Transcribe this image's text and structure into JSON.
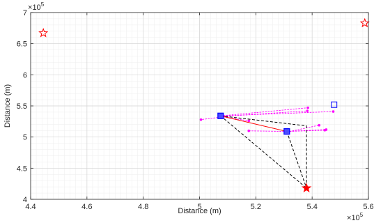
{
  "chart_data": {
    "type": "scatter",
    "title": "",
    "xlabel": "Distance (m)",
    "ylabel": "Distance (m)",
    "xlim": [
      4.4,
      5.6
    ],
    "ylim": [
      4.0,
      7.0
    ],
    "x_scale_base": "10",
    "x_scale_exponent": "5",
    "y_scale_base": "10",
    "y_scale_exponent": "5",
    "x_ticks": [
      "4.4",
      "4.6",
      "4.8",
      "5",
      "5.2",
      "5.4",
      "5.6"
    ],
    "y_ticks": [
      "4",
      "4.5",
      "5",
      "5.5",
      "6",
      "6.5",
      "7"
    ],
    "grid": true,
    "minor_grid": true,
    "colors": {
      "star": "#ff0000",
      "square": "#0000ff",
      "square_fill": "#4d4dff",
      "link_solid": "#ff0000",
      "link_dashed": "#000000",
      "trajectory": "#ff00ff"
    },
    "open_stars": [
      {
        "x": 4.445,
        "y": 6.67
      },
      {
        "x": 5.587,
        "y": 6.83
      }
    ],
    "filled_stars": [
      {
        "x": 5.38,
        "y": 4.18
      }
    ],
    "filled_squares": [
      {
        "x": 5.075,
        "y": 5.34
      },
      {
        "x": 5.31,
        "y": 5.09
      }
    ],
    "open_squares": [
      {
        "x": 5.478,
        "y": 5.52
      }
    ],
    "solid_links": [
      [
        [
          5.075,
          5.34
        ],
        [
          5.31,
          5.09
        ]
      ]
    ],
    "dashed_links": [
      [
        [
          5.075,
          5.34
        ],
        [
          5.38,
          5.18
        ],
        [
          5.38,
          4.18
        ],
        [
          5.075,
          5.34
        ]
      ],
      [
        [
          5.31,
          5.09
        ],
        [
          5.38,
          4.18
        ]
      ]
    ],
    "trajectories": [
      [
        [
          5.075,
          5.34
        ],
        [
          5.385,
          5.47
        ]
      ],
      [
        [
          5.075,
          5.33
        ],
        [
          5.383,
          5.42
        ]
      ],
      [
        [
          5.075,
          5.32
        ],
        [
          5.005,
          5.28
        ]
      ],
      [
        [
          5.075,
          5.33
        ],
        [
          5.175,
          5.26
        ]
      ],
      [
        [
          5.075,
          5.34
        ],
        [
          5.475,
          5.41
        ]
      ],
      [
        [
          5.31,
          5.09
        ],
        [
          5.175,
          5.1
        ]
      ],
      [
        [
          5.31,
          5.09
        ],
        [
          5.445,
          5.11
        ]
      ],
      [
        [
          5.31,
          5.08
        ],
        [
          5.425,
          5.19
        ]
      ],
      [
        [
          5.31,
          5.09
        ],
        [
          5.45,
          5.12
        ]
      ]
    ]
  }
}
